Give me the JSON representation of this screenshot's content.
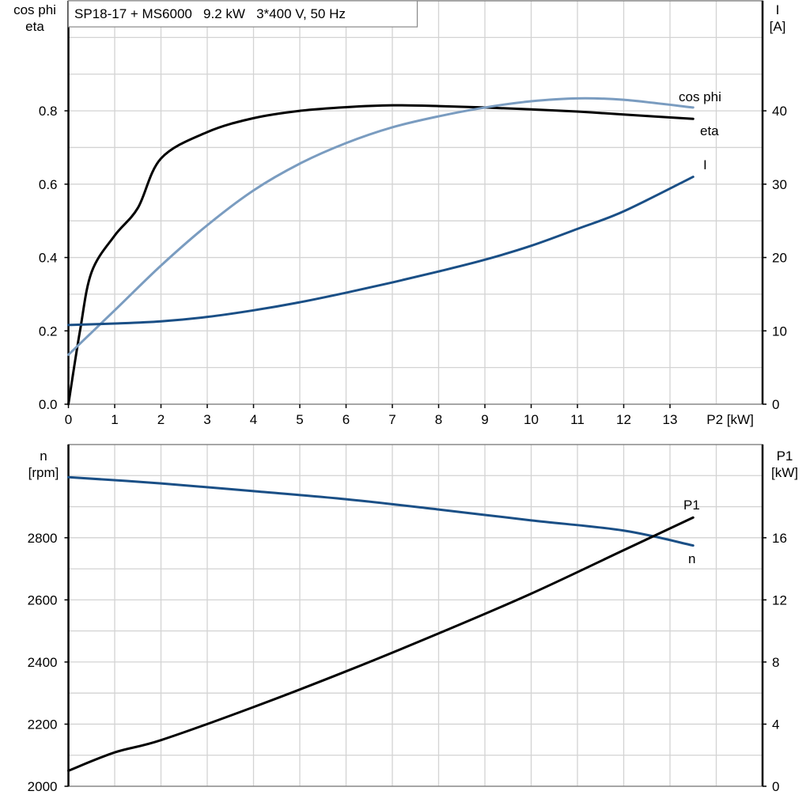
{
  "title": "SP18-17 + MS6000   9.2 kW   3*400 V, 50 Hz",
  "chart_data": [
    {
      "type": "line",
      "ylabel_left": [
        "cos phi",
        "eta"
      ],
      "ylabel_right": [
        "I",
        "[A]"
      ],
      "xlabel": "P2 [kW]",
      "xlim": [
        0,
        15
      ],
      "ylim_left": [
        0,
        1.1
      ],
      "ylim_right": [
        0,
        55
      ],
      "xticks": [
        0,
        1,
        2,
        3,
        4,
        5,
        6,
        7,
        8,
        9,
        10,
        11,
        12,
        13
      ],
      "yticks_left": [
        "0.0",
        "0.2",
        "0.4",
        "0.6",
        "0.8"
      ],
      "yticks_right": [
        "0",
        "10",
        "20",
        "30",
        "40"
      ],
      "grid": true,
      "series": [
        {
          "name": "eta",
          "axis": "left",
          "color": "#000000",
          "x": [
            0,
            0.25,
            0.5,
            1,
            1.5,
            2,
            3,
            4,
            5,
            6,
            7,
            8,
            9,
            10,
            11,
            12,
            13.5
          ],
          "y": [
            0,
            0.2,
            0.36,
            0.46,
            0.535,
            0.67,
            0.742,
            0.78,
            0.8,
            0.81,
            0.815,
            0.813,
            0.809,
            0.804,
            0.798,
            0.79,
            0.778
          ]
        },
        {
          "name": "cos phi",
          "axis": "left",
          "color": "#7a9cc0",
          "x": [
            0,
            1,
            2,
            3,
            4,
            5,
            6,
            7,
            8,
            9,
            10,
            11,
            12,
            13.5
          ],
          "y": [
            0.135,
            0.256,
            0.378,
            0.488,
            0.583,
            0.656,
            0.712,
            0.755,
            0.785,
            0.809,
            0.826,
            0.834,
            0.83,
            0.809
          ]
        },
        {
          "name": "I",
          "axis": "right",
          "color": "#1a4f86",
          "x": [
            0,
            1,
            2,
            3,
            4,
            5,
            6,
            7,
            8,
            9,
            10,
            11,
            12,
            13.5
          ],
          "y": [
            10.8,
            11,
            11.3,
            11.9,
            12.8,
            13.9,
            15.2,
            16.6,
            18.1,
            19.7,
            21.6,
            23.9,
            26.3,
            31
          ]
        }
      ]
    },
    {
      "type": "line",
      "ylabel_left": [
        "n",
        "[rpm]"
      ],
      "ylabel_right": [
        "P1",
        "[kW]"
      ],
      "xlim": [
        0,
        15
      ],
      "ylim_left": [
        2000,
        3100
      ],
      "ylim_right": [
        0,
        22
      ],
      "yticks_left": [
        "2000",
        "2200",
        "2400",
        "2600",
        "2800"
      ],
      "yticks_right": [
        "0",
        "4",
        "8",
        "12",
        "16"
      ],
      "grid": true,
      "series": [
        {
          "name": "n",
          "axis": "left",
          "color": "#1a4f86",
          "x": [
            0,
            2,
            4,
            6,
            8,
            10,
            12,
            13.5
          ],
          "y": [
            2995,
            2975,
            2950,
            2924,
            2891,
            2856,
            2823,
            2775
          ]
        },
        {
          "name": "P1",
          "axis": "right",
          "color": "#000000",
          "x": [
            0,
            1,
            2,
            4,
            6,
            8,
            10,
            12,
            13.5
          ],
          "y": [
            1.0,
            2.18,
            2.97,
            5.1,
            7.4,
            9.84,
            12.4,
            15.2,
            17.3
          ]
        }
      ]
    }
  ]
}
